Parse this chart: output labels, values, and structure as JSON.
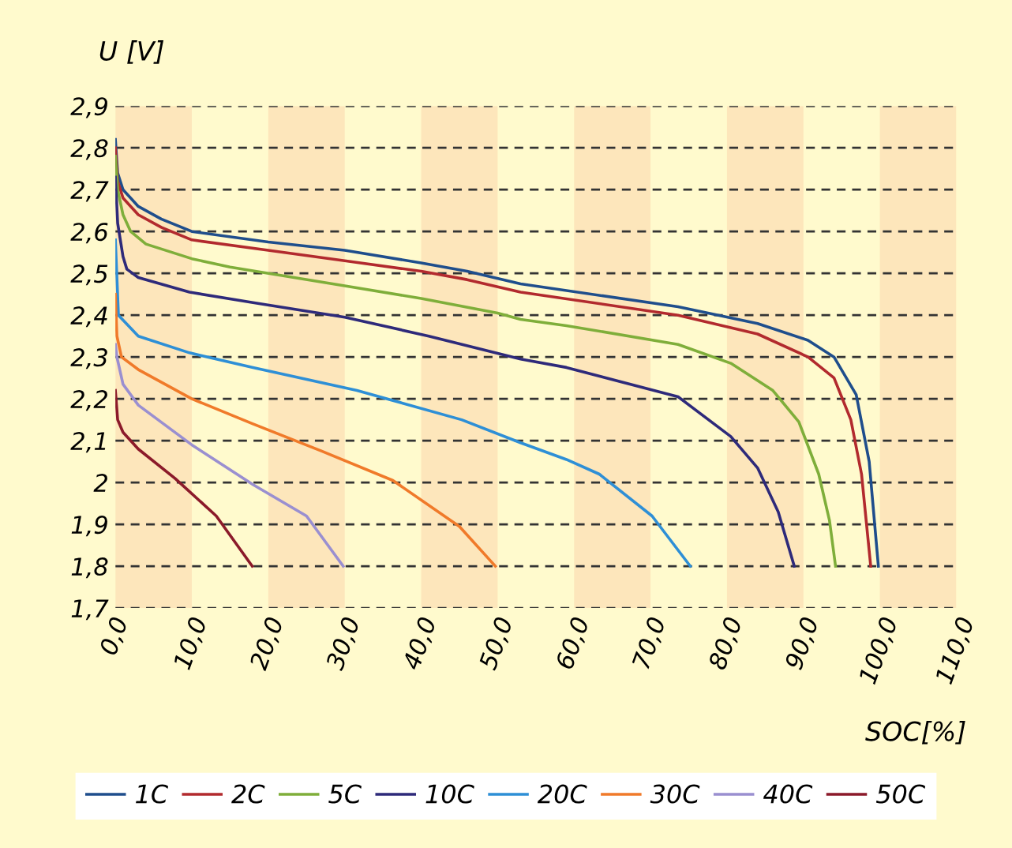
{
  "chart_data": {
    "type": "line",
    "ylabel": "U [V]",
    "xlabel": "SOC[%]",
    "xlim": [
      0,
      110
    ],
    "ylim": [
      1.7,
      2.9
    ],
    "xticks": [
      {
        "value": 0,
        "label": "0,0"
      },
      {
        "value": 10,
        "label": "10,0"
      },
      {
        "value": 20,
        "label": "20,0"
      },
      {
        "value": 30,
        "label": "30,0"
      },
      {
        "value": 40,
        "label": "40,0"
      },
      {
        "value": 50,
        "label": "50,0"
      },
      {
        "value": 60,
        "label": "60,0"
      },
      {
        "value": 70,
        "label": "70,0"
      },
      {
        "value": 80,
        "label": "80,0"
      },
      {
        "value": 90,
        "label": "90,0"
      },
      {
        "value": 100,
        "label": "100,0"
      },
      {
        "value": 110,
        "label": "110,0"
      }
    ],
    "yticks": [
      {
        "value": 1.7,
        "label": "1,7"
      },
      {
        "value": 1.8,
        "label": "1,8"
      },
      {
        "value": 1.9,
        "label": "1,9"
      },
      {
        "value": 2.0,
        "label": "2"
      },
      {
        "value": 2.1,
        "label": "2,1"
      },
      {
        "value": 2.2,
        "label": "2,2"
      },
      {
        "value": 2.3,
        "label": "2,3"
      },
      {
        "value": 2.4,
        "label": "2,4"
      },
      {
        "value": 2.5,
        "label": "2,5"
      },
      {
        "value": 2.6,
        "label": "2,6"
      },
      {
        "value": 2.7,
        "label": "2,7"
      },
      {
        "value": 2.8,
        "label": "2,8"
      },
      {
        "value": 2.9,
        "label": "2,9"
      }
    ],
    "grid": "y",
    "legend": "bottom",
    "line_style": "solid",
    "marker": "none",
    "bands": [
      {
        "axis": "x",
        "from": 0,
        "to": 10,
        "color": "#fde6bb"
      },
      {
        "axis": "x",
        "from": 20,
        "to": 30,
        "color": "#fde6bb"
      },
      {
        "axis": "x",
        "from": 40,
        "to": 50,
        "color": "#fde6bb"
      },
      {
        "axis": "x",
        "from": 60,
        "to": 70,
        "color": "#fde6bb"
      },
      {
        "axis": "x",
        "from": 80,
        "to": 90,
        "color": "#fde6bb"
      },
      {
        "axis": "x",
        "from": 100,
        "to": 110,
        "color": "#fde6bb"
      }
    ],
    "series": [
      {
        "name": "1C",
        "color": "#1f4e8c",
        "x": [
          0,
          0.3,
          1,
          3,
          6,
          10,
          20,
          30,
          40,
          46,
          53,
          73.6,
          84,
          90.6,
          94,
          96.9,
          98.6,
          99.8
        ],
        "values": [
          2.82,
          2.74,
          2.7,
          2.66,
          2.63,
          2.6,
          2.575,
          2.555,
          2.525,
          2.505,
          2.475,
          2.42,
          2.38,
          2.34,
          2.3,
          2.21,
          2.05,
          1.8
        ]
      },
      {
        "name": "2C",
        "color": "#b22a2e",
        "x": [
          0,
          0.3,
          1,
          3,
          6,
          10,
          20,
          30,
          40,
          46,
          53,
          73.6,
          84,
          90.6,
          94,
          96.2,
          97.6,
          98.8
        ],
        "values": [
          2.8,
          2.72,
          2.68,
          2.64,
          2.61,
          2.58,
          2.555,
          2.53,
          2.505,
          2.485,
          2.455,
          2.4,
          2.355,
          2.3,
          2.25,
          2.15,
          2.02,
          1.8
        ]
      },
      {
        "name": "5C",
        "color": "#7fae3a",
        "x": [
          0,
          0.3,
          1,
          2,
          4,
          10,
          15,
          30,
          40,
          50,
          53,
          59,
          73.6,
          80.5,
          86,
          89.4,
          92,
          93.4,
          94.2
        ],
        "values": [
          2.78,
          2.7,
          2.64,
          2.6,
          2.57,
          2.535,
          2.515,
          2.47,
          2.44,
          2.405,
          2.39,
          2.375,
          2.33,
          2.285,
          2.22,
          2.145,
          2.02,
          1.91,
          1.8
        ]
      },
      {
        "name": "10C",
        "color": "#2e2a7a",
        "x": [
          0,
          0.3,
          1,
          1.5,
          3,
          9.7,
          18,
          30,
          41,
          53,
          59,
          73.6,
          80.5,
          84,
          86.7,
          88.8
        ],
        "values": [
          2.73,
          2.62,
          2.54,
          2.51,
          2.49,
          2.455,
          2.43,
          2.395,
          2.35,
          2.295,
          2.275,
          2.205,
          2.11,
          2.035,
          1.93,
          1.8
        ]
      },
      {
        "name": "20C",
        "color": "#2e8fd6",
        "x": [
          0,
          0.4,
          3,
          9.7,
          18,
          31.6,
          45.3,
          53,
          59,
          63.3,
          70.2,
          75.2
        ],
        "values": [
          2.58,
          2.4,
          2.35,
          2.31,
          2.275,
          2.22,
          2.15,
          2.095,
          2.055,
          2.02,
          1.92,
          1.8
        ]
      },
      {
        "name": "30C",
        "color": "#f07a2a",
        "x": [
          0,
          0.2,
          0.8,
          3,
          10,
          18,
          27,
          36.3,
          45,
          49.7
        ],
        "values": [
          2.45,
          2.35,
          2.3,
          2.27,
          2.2,
          2.14,
          2.075,
          2.005,
          1.895,
          1.8
        ]
      },
      {
        "name": "40C",
        "color": "#9a8fd0",
        "x": [
          0,
          0.2,
          1,
          3,
          10,
          18,
          25,
          29.8
        ],
        "values": [
          2.33,
          2.3,
          2.235,
          2.185,
          2.09,
          1.995,
          1.92,
          1.8
        ]
      },
      {
        "name": "50C",
        "color": "#8b1a2a",
        "x": [
          0,
          0.3,
          1,
          3,
          7.8,
          13.2,
          17.9
        ],
        "values": [
          2.22,
          2.15,
          2.12,
          2.08,
          2.01,
          1.92,
          1.8
        ]
      }
    ]
  }
}
